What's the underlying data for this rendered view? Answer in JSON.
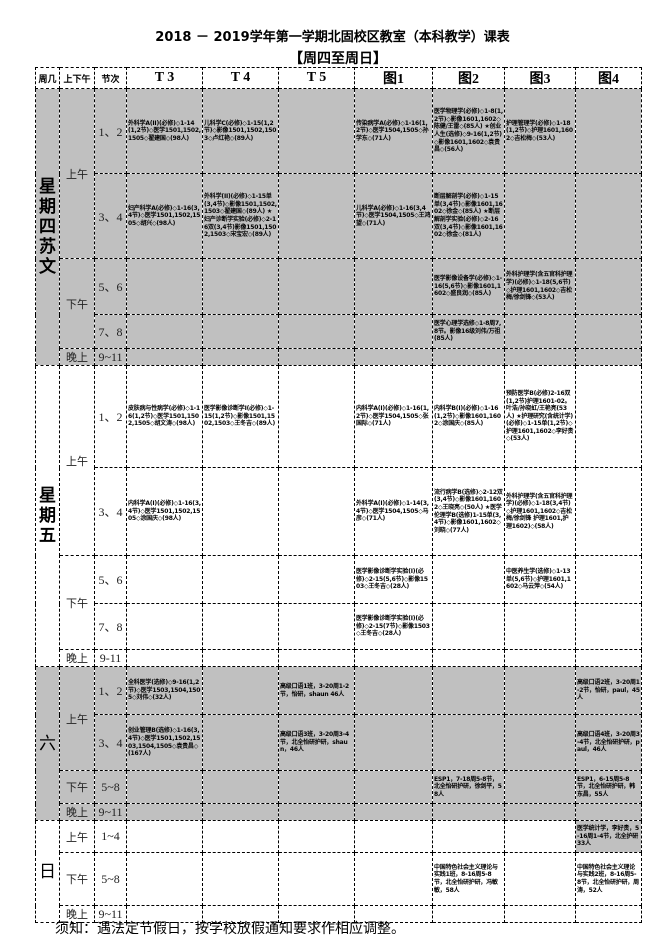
{
  "title": "2018 － 2019学年第一学期北固校区教室（本科教学）课表",
  "subtitle": "【周四至周日】",
  "headers": [
    "周几",
    "上下午",
    "节次",
    "T 3",
    "T 4",
    "T 5",
    "图1",
    "图2",
    "图3",
    "图4"
  ],
  "shade_color": "#c0c0c0",
  "days": [
    {
      "label": "星期四苏文",
      "shaded": true,
      "halves": [
        {
          "label": "上午",
          "periods": [
            {
              "slot": "1、2",
              "cells": [
                "外科学A(II)(必修)◇1-14(1,2节)◇医学1501,1502,1505◇翟建国◇(98人)",
                "儿科学C(必修)◇1-15(1,2节)◇影像1501,1502,1503◇卢红艳◇(89人)",
                "",
                "传染病学A(必修)◇1-16(1,2节)◇医学1504,1505◇孙学东◇(71人)",
                "医学物理学(必修)◇1-8(1,2节)◇影像1601,1602◇陈健/王雷◇(85人) ★创业人生(选修)◇9-16(1,2节)◇影像1601,1602◇袁贵昌◇(56人)",
                "护理管理学(必修)◇1-18(1,2节)◇护理1601,1602◇吉松梅◇(53人)",
                ""
              ]
            },
            {
              "slot": "3、4",
              "cells": [
                "妇产科学A(必修)◇1-16(3,4节)◇医学1501,1502,1505◇胡兴◇(98人)",
                "外科学(II)(必修)◇1-15单(3,4节)◇影像1501,1502,1503◇翟建国◇(89人) ★妇产诊断学实验(必修)◇2-16双(3,4节)影像1501,1502,1503◇宋宝宏◇(89人)",
                "",
                "儿科学A(必修)◇1-16(3,4节)◇医学1504,1505◇王鸿望◇(71人)",
                "断层解剖学(必修)◇1-15单(3,4节)◇影像1601,1602◇徐金◇(85人) ★断层解剖学实验(必修)◇2-16双(3,4节)◇影像1601,1602◇徐金◇(81人)",
                "",
                ""
              ]
            }
          ]
        },
        {
          "label": "下午",
          "periods": [
            {
              "slot": "5、6",
              "cells": [
                "",
                "",
                "",
                "",
                "医学影像设备学(必修)◇1-16(5,6节)◇影像1601,1602◇盛良润◇(85人)",
                "外科护理学(含五官科护理学)(必修)◇1-18(5,6节)◇护理1601,1602◇吉松梅/徐剑锋◇(53人)",
                ""
              ]
            },
            {
              "slot": "7、8",
              "cells": [
                "",
                "",
                "",
                "",
                "医学心理学选修◇1-8周7,8节。影像16级刘伟/万祖(85人)",
                "",
                ""
              ]
            }
          ]
        },
        {
          "label": "晚上",
          "periods": [
            {
              "slot": "9~11",
              "cells": [
                "",
                "",
                "",
                "",
                "",
                "",
                ""
              ]
            }
          ]
        }
      ]
    },
    {
      "label": "星期五",
      "shaded": false,
      "halves": [
        {
          "label": "上午",
          "periods": [
            {
              "slot": "1、2",
              "cells": [
                "皮肤病与性病学(必修)◇1-16(1,2节)◇医学1501,1502,1505◇胡文涛◇(98人)",
                "医学影像诊断学I(必修)◇1-15(1,2节)◇影像1501,1502,1503◇王冬吉◇(89人)",
                "",
                "内科学A(I)(必修)◇1-16(1,2节)◇医学1504,1505◇张国际◇(71人)",
                "内科学B(I)(必修)◇1-16(1,2节)◇影像1601,1602◇涂国庆◇(85人)",
                "预防医学B(必修)2-16双(1,2节)护理1601-02。叶浩/孙晓虹/王艳亮(53人) ★护理研究(含统计学)(必修)◇1-15单(1,2节)◇护理1601,1602◇李好贵◇(53人)",
                ""
              ]
            },
            {
              "slot": "3、4",
              "cells": [
                "内科学A(I)(必修)◇1-16(3,4节)◇医学1501,1502,1505◇涂国庆◇(98人)",
                "",
                "",
                "外科学A(I)(必修)◇1-14(3,4节)◇医学1504,1505◇马彦◇(71人)",
                "流行病学B(选修)◇2-12双(3,4节)◇影像1601,1602◇王晓亮◇(50人) ★医学伦理学B(选修)1-15单(3,4节)◇影像1601,1602◇刘晓◇(77人)",
                "外科护理学(含五官科护理学)(必修)◇1-18(3,4节)◇护理1601,1602◇吉松梅/徐剑锋 护理1601,护理1602)◇(58人)",
                ""
              ]
            }
          ]
        },
        {
          "label": "下午",
          "periods": [
            {
              "slot": "5、6",
              "cells": [
                "",
                "",
                "",
                "医学影像诊断学实验(I)(必修)◇2-15(5,6节)◇影像1503◇王冬吉◇(28人)",
                "",
                "中医养生学(选修)◇1-13单(5,6节)◇护理1601,1602◇马云萍◇(54人)",
                ""
              ]
            },
            {
              "slot": "7、8",
              "cells": [
                "",
                "",
                "",
                "医学影像诊断学实验(I)(必修)◇2-15(7节)◇影像1503◇王冬吉◇(28人)",
                "",
                "",
                ""
              ]
            }
          ]
        },
        {
          "label": "晚上",
          "periods": [
            {
              "slot": "9-11",
              "cells": [
                "",
                "",
                "",
                "",
                "",
                "",
                ""
              ]
            }
          ]
        }
      ]
    },
    {
      "label": "六",
      "shaded": true,
      "halves": [
        {
          "label": "上午",
          "periods": [
            {
              "slot": "1、2",
              "cells": [
                "全科医学(选修)◇9-16(1,2节)◇医学1503,1504,1505◇刘伟◇(32人)",
                "",
                "高级口语1班，3-20周1-2节，怡研，shaun 46人",
                "",
                "",
                "",
                "高级口语2班，3-20周1-2节，怡研，paul，45人"
              ]
            },
            {
              "slot": "3、4",
              "cells": [
                "创业管理B(选修)◇1-16(3,4节)◇医学1501,1502,1503,1504,1505◇袁贵昌◇(167人)",
                "",
                "高级口语3班，3-20周3-4节，北全怡研护研，shaun，46人",
                "",
                "",
                "",
                "高级口语4班，3-20周3-4节，北全怡研护研，paul，46人"
              ]
            }
          ]
        },
        {
          "label": "下午",
          "periods": [
            {
              "slot": "5~8",
              "cells": [
                "",
                "",
                "",
                "",
                "ESP1，7-18周5-8节，北全怡研护研，徐剑平，58人",
                "",
                "ESP1，6-15周5-8节，北全怡研护研，韩东昌，55人"
              ]
            }
          ]
        },
        {
          "label": "晚上",
          "periods": [
            {
              "slot": "9~11",
              "cells": [
                "",
                "",
                "",
                "",
                "",
                "",
                ""
              ]
            }
          ]
        }
      ]
    },
    {
      "label": "日",
      "shaded": false,
      "halves": [
        {
          "label": "上午",
          "periods": [
            {
              "slot": "1~4",
              "shaded_columns": [
                "图4"
              ],
              "cells": [
                "",
                "",
                "",
                "",
                "",
                "",
                "医学统计学，李好贵，5-16周1-4节，北全护研33人"
              ]
            }
          ]
        },
        {
          "label": "下午",
          "periods": [
            {
              "slot": "5~8",
              "cells": [
                "",
                "",
                "",
                "",
                "中国特色社会主义理论与实践1班，8-16周5-8节，北全怡研护研，冯敏敏，58人",
                "",
                "中国特色社会主义理论与实践2班，8-16周5-8节，北全怡研护研，周涛，52人"
              ]
            }
          ]
        },
        {
          "label": "晚上",
          "periods": [
            {
              "slot": "9~11",
              "cells": [
                "",
                "",
                "",
                "",
                "",
                "",
                ""
              ]
            }
          ]
        }
      ]
    }
  ],
  "footer": "须知：遇法定节假日，按学校放假通知要求作相应调整。"
}
